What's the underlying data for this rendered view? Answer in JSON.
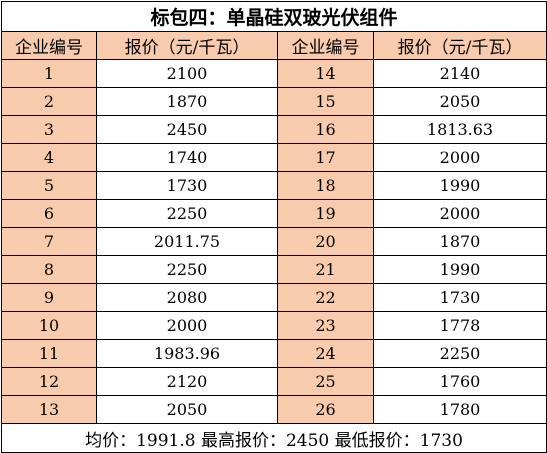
{
  "title": "标包四：单晶硅双玻光伏组件",
  "headers": {
    "company_no": "企业编号",
    "price": "报价（元/千瓦）"
  },
  "left_rows": [
    {
      "id": "1",
      "price": "2100"
    },
    {
      "id": "2",
      "price": "1870"
    },
    {
      "id": "3",
      "price": "2450"
    },
    {
      "id": "4",
      "price": "1740"
    },
    {
      "id": "5",
      "price": "1730"
    },
    {
      "id": "6",
      "price": "2250"
    },
    {
      "id": "7",
      "price": "2011.75"
    },
    {
      "id": "8",
      "price": "2250"
    },
    {
      "id": "9",
      "price": "2080"
    },
    {
      "id": "10",
      "price": "2000"
    },
    {
      "id": "11",
      "price": "1983.96"
    },
    {
      "id": "12",
      "price": "2120"
    },
    {
      "id": "13",
      "price": "2050"
    }
  ],
  "right_rows": [
    {
      "id": "14",
      "price": "2140"
    },
    {
      "id": "15",
      "price": "2050"
    },
    {
      "id": "16",
      "price": "1813.63"
    },
    {
      "id": "17",
      "price": "2000"
    },
    {
      "id": "18",
      "price": "1990"
    },
    {
      "id": "19",
      "price": "2000"
    },
    {
      "id": "20",
      "price": "1870"
    },
    {
      "id": "21",
      "price": "1990"
    },
    {
      "id": "22",
      "price": "1730"
    },
    {
      "id": "23",
      "price": "1778"
    },
    {
      "id": "24",
      "price": "2250"
    },
    {
      "id": "25",
      "price": "1760"
    },
    {
      "id": "26",
      "price": "1780"
    }
  ],
  "footer": "均价：1991.8 最高报价：2450 最低报价：1730",
  "colors": {
    "id_cell_fill": "#f8cbad",
    "border": "#000000"
  }
}
